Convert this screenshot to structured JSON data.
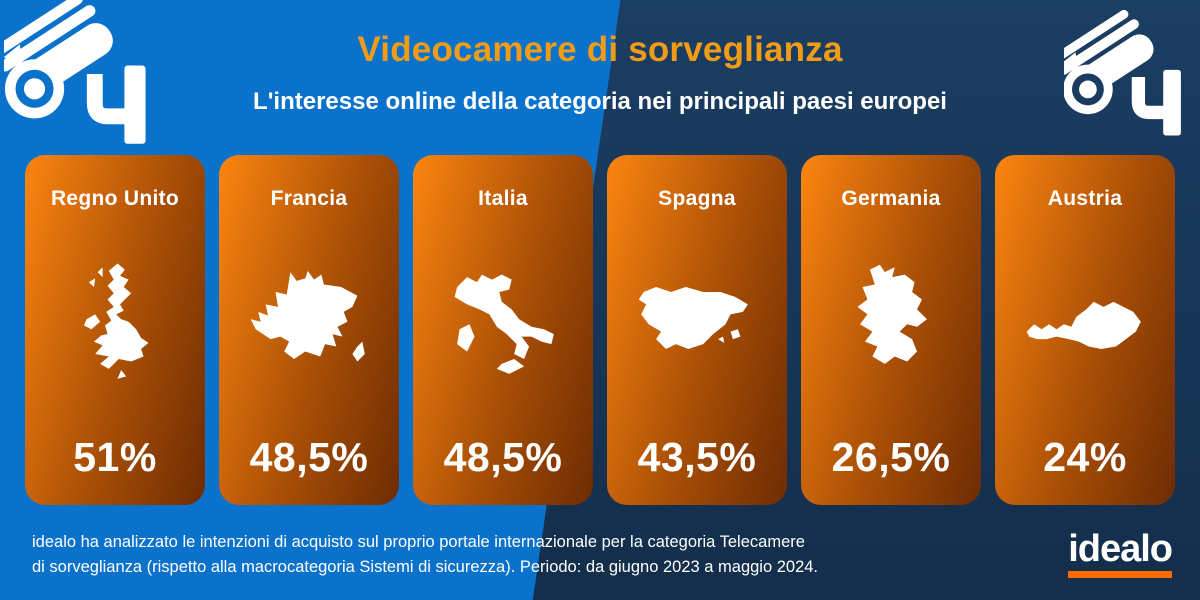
{
  "header": {
    "title": "Videocamere di sorveglianza",
    "subtitle": "L'interesse online della categoria nei principali paesi europei"
  },
  "cards": [
    {
      "country": "Regno Unito",
      "value_label": "51%",
      "map": "uk"
    },
    {
      "country": "Francia",
      "value_label": "48,5%",
      "map": "france"
    },
    {
      "country": "Italia",
      "value_label": "48,5%",
      "map": "italy"
    },
    {
      "country": "Spagna",
      "value_label": "43,5%",
      "map": "spain"
    },
    {
      "country": "Germania",
      "value_label": "26,5%",
      "map": "germany"
    },
    {
      "country": "Austria",
      "value_label": "24%",
      "map": "austria"
    }
  ],
  "icons": {
    "top_left": "cctv-camera-icon",
    "top_right": "cctv-camera-icon"
  },
  "footnote": {
    "line1": "idealo ha analizzato le intenzioni di acquisto sul proprio portale internazionale per la categoria Telecamere",
    "line2": "di sorveglianza (rispetto alla macrocategoria Sistemi di sicurezza). Periodo: da giugno 2023 a maggio 2024."
  },
  "logo": {
    "text": "idealo"
  },
  "colors": {
    "left_background": "#0B72CC",
    "right_background_top": "#1B3E63",
    "right_background_bottom": "#142E4B",
    "card_gradient_start": "#FC8510",
    "card_gradient_end": "#6E2C03",
    "title_orange": "#F19C17",
    "logo_underline_orange": "#FF6900",
    "text_white": "#FFFFFF"
  },
  "chart_data": {
    "type": "bar",
    "title": "Videocamere di sorveglianza",
    "subtitle": "L'interesse online della categoria nei principali paesi europei",
    "categories": [
      "Regno Unito",
      "Francia",
      "Italia",
      "Spagna",
      "Germania",
      "Austria"
    ],
    "values": [
      51,
      48.5,
      48.5,
      43.5,
      26.5,
      24
    ],
    "unit": "%",
    "value_labels": [
      "51%",
      "48,5%",
      "48,5%",
      "43,5%",
      "26,5%",
      "24%"
    ],
    "legend_position": "none",
    "note": "idealo ha analizzato le intenzioni di acquisto sul proprio portale internazionale per la categoria Telecamere di sorveglianza (rispetto alla macrocategoria Sistemi di sicurezza). Periodo: da giugno 2023 a maggio 2024."
  }
}
